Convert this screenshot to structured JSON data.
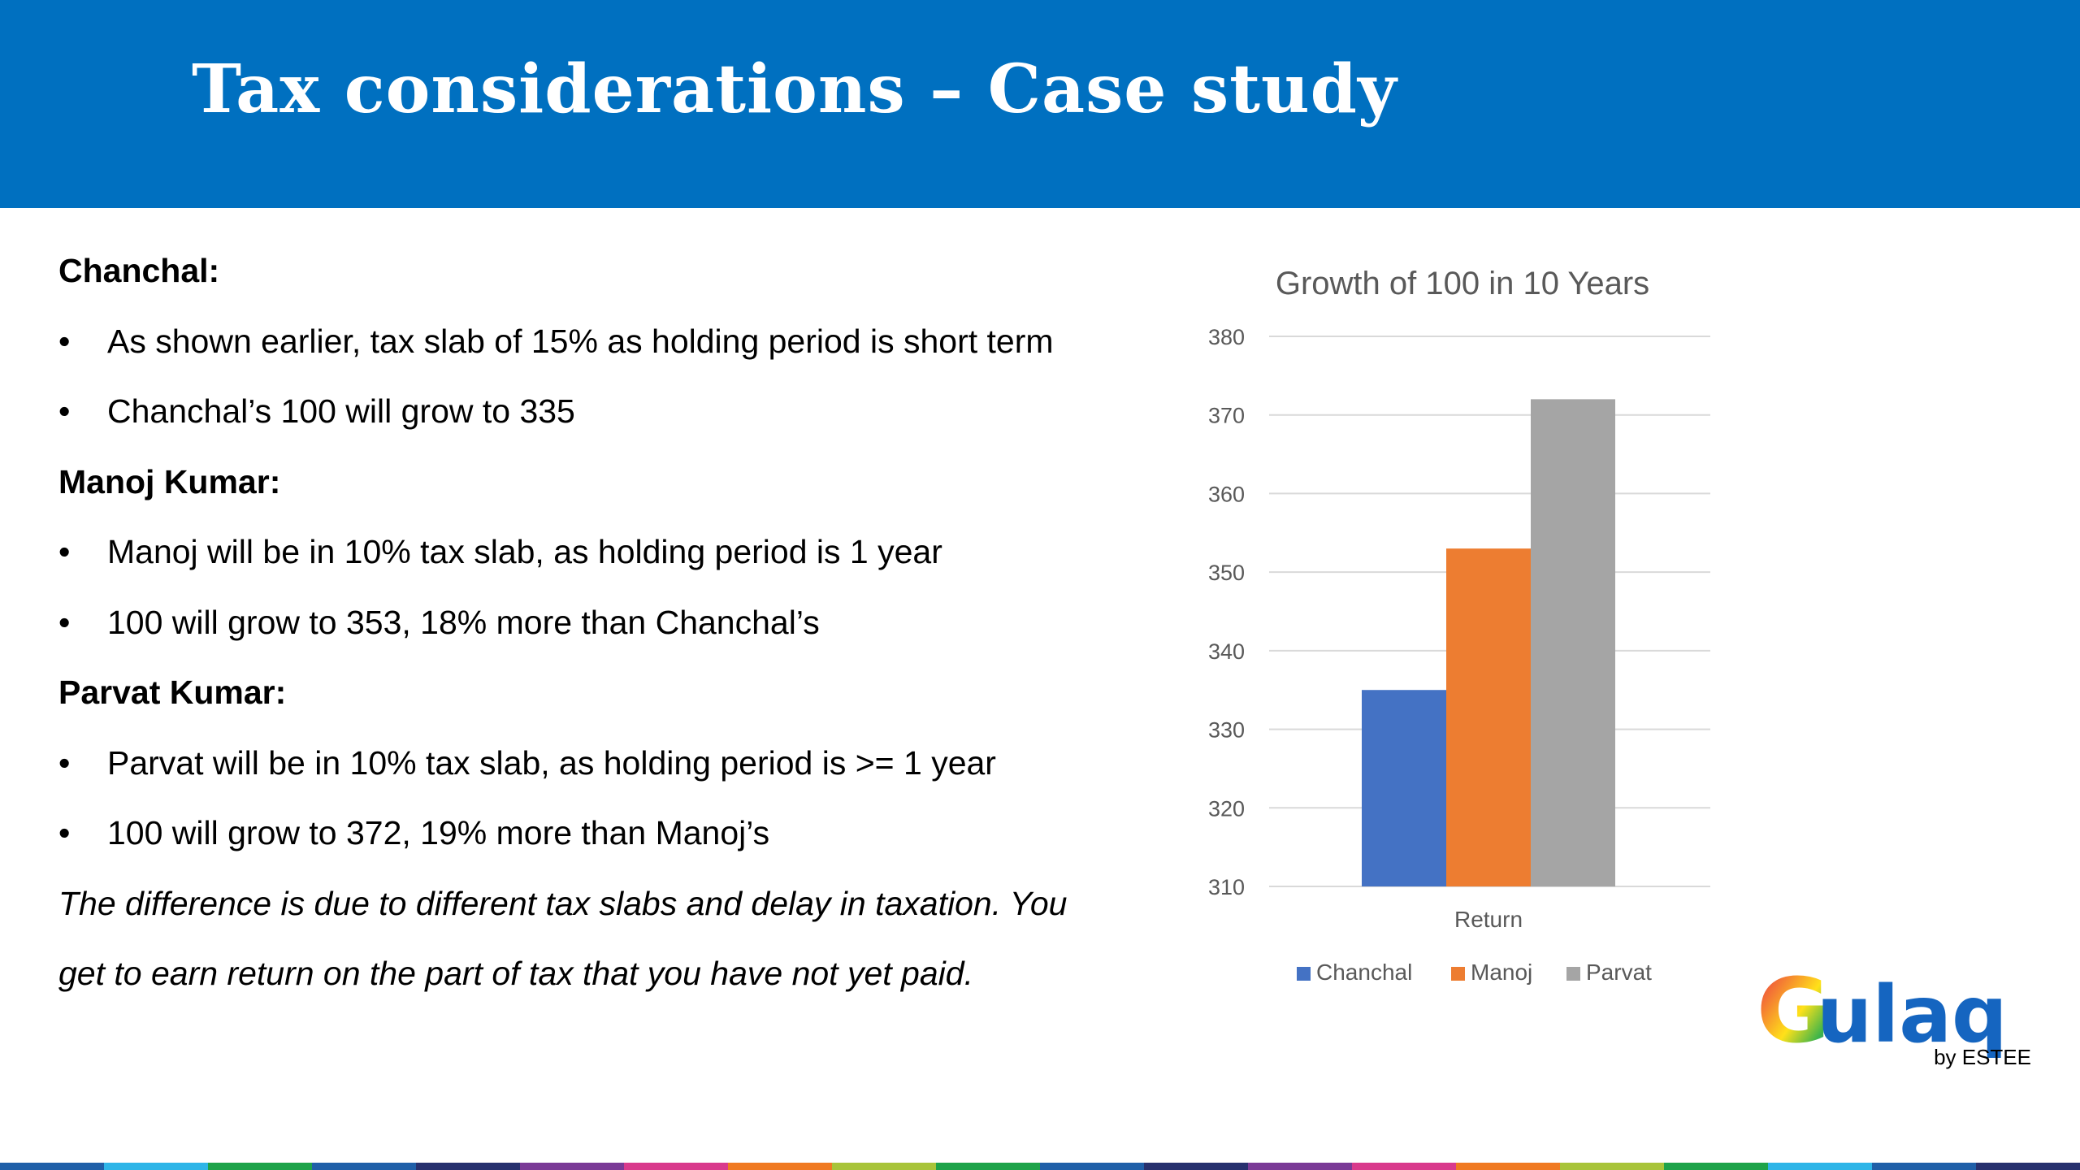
{
  "slide": {
    "title": "Tax considerations – Case study"
  },
  "content": {
    "bullet_char": "•",
    "sections": [
      {
        "heading": "Chanchal:",
        "bullets": [
          "As shown earlier, tax slab of 15% as holding period is short term",
          "Chanchal’s 100 will grow to 335"
        ]
      },
      {
        "heading": "Manoj Kumar:",
        "bullets": [
          "Manoj will be in 10% tax slab, as holding period is 1 year",
          "100 will grow to 353, 18% more than Chanchal’s"
        ]
      },
      {
        "heading": "Parvat Kumar:",
        "bullets": [
          "Parvat will be in 10% tax slab, as holding period is >= 1 year",
          "100 will grow to 372, 19% more than Manoj’s"
        ]
      }
    ],
    "note_lines": [
      "The difference is due to different tax slabs and delay in taxation. You",
      "get to earn return on the part of tax that you have not yet paid."
    ]
  },
  "chart_data": {
    "type": "bar",
    "title": "Growth of 100 in 10 Years",
    "categories": [
      "Return"
    ],
    "series": [
      {
        "name": "Chanchal",
        "values": [
          335
        ],
        "color": "#4472c4"
      },
      {
        "name": "Manoj",
        "values": [
          353
        ],
        "color": "#ed7d31"
      },
      {
        "name": "Parvat",
        "values": [
          372
        ],
        "color": "#a5a5a5"
      }
    ],
    "ylim": [
      310,
      380
    ],
    "yticks": [
      310,
      320,
      330,
      340,
      350,
      360,
      370,
      380
    ],
    "grid": true,
    "legend_position": "bottom"
  },
  "logo": {
    "name": "Gulaq",
    "byline": "by ESTEE"
  },
  "colors": {
    "header": "#0070c0",
    "stripe": [
      "#1f5fa8",
      "#2eb5e8",
      "#1ea34a",
      "#1f5fa8",
      "#27306e",
      "#7a3a96",
      "#d93a8c",
      "#f07a22",
      "#a8c43a",
      "#1ea34a",
      "#1f5fa8",
      "#27306e",
      "#7a3a96",
      "#d93a8c",
      "#f07a22",
      "#a8c43a",
      "#1ea34a",
      "#2eb5e8",
      "#1f5fa8",
      "#27306e"
    ]
  }
}
